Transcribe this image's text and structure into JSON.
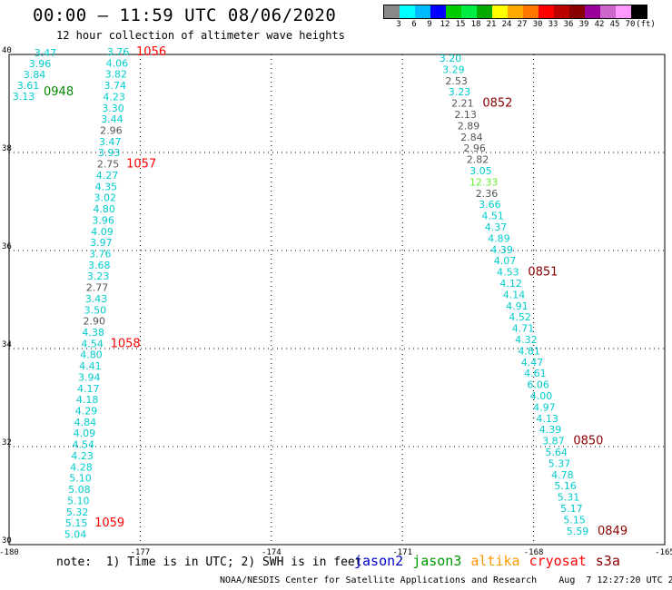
{
  "title": "00:00 – 11:59 UTC 08/06/2020",
  "subtitle": "12 hour collection of altimeter wave heights",
  "colorbar": {
    "colors": [
      "#888888",
      "#00ffff",
      "#00bbff",
      "#0000ff",
      "#00cc00",
      "#00ee44",
      "#00aa00",
      "#ffff00",
      "#ffaa00",
      "#ff7700",
      "#ff0000",
      "#bb0000",
      "#880000",
      "#990099",
      "#cc66cc",
      "#ff99ff",
      "#000000"
    ],
    "labels": [
      "3",
      "6",
      "9",
      "12",
      "15",
      "18",
      "21",
      "24",
      "27",
      "30",
      "33",
      "36",
      "39",
      "42",
      "45",
      "70",
      "(ft)"
    ]
  },
  "axes": {
    "x_ticks": [
      "-180",
      "-177",
      "-174",
      "-171",
      "-168",
      "-165"
    ],
    "y_ticks": [
      "40",
      "38",
      "36",
      "34",
      "32",
      "30"
    ]
  },
  "passes": [
    {
      "satellite": "cryosat s3a",
      "time": "1056",
      "time_color": "#ff0000",
      "lon_start": -179.1,
      "lon_end": -179.6,
      "values": [
        "3.47",
        "3.96",
        "3.84",
        "3.61",
        "3.13"
      ],
      "colors": [
        "#00cccc",
        "#00cccc",
        "#00cccc",
        "#00cccc",
        "#00cccc"
      ],
      "lat_start": 39.9,
      "lat_step": -0.22
    },
    {
      "satellite": "jason3",
      "time": "0948",
      "time_color": "#008800",
      "values": []
    }
  ],
  "left_track": {
    "values": [
      "3.76",
      "4.06",
      "3.82",
      "3.74",
      "4.23",
      "3.30",
      "3.44",
      "2.96",
      "3.47",
      "3.93",
      "2.75",
      "4.27",
      "4.35",
      "3.02",
      "4.80",
      "3.96",
      "4.09",
      "3.97",
      "3.76",
      "3.68",
      "3.23",
      "2.77",
      "3.43",
      "3.50",
      "2.90",
      "4.38",
      "4.54",
      "4.80",
      "4.41",
      "3.94",
      "4.17",
      "4.18",
      "4.29",
      "4.84",
      "4.09",
      "4.54",
      "4.23",
      "4.28",
      "5.10",
      "5.08",
      "5.10",
      "5.32",
      "5.15",
      "5.04"
    ],
    "colors": [
      "#00cccc",
      "#00cccc",
      "#00cccc",
      "#00cccc",
      "#00cccc",
      "#00cccc",
      "#00cccc",
      "#555555",
      "#00cccc",
      "#00cccc",
      "#555555",
      "#00cccc",
      "#00cccc",
      "#00cccc",
      "#00cccc",
      "#00cccc",
      "#00cccc",
      "#00cccc",
      "#00cccc",
      "#00cccc",
      "#00cccc",
      "#555555",
      "#00cccc",
      "#00cccc",
      "#555555",
      "#00cccc",
      "#00cccc",
      "#00cccc",
      "#00cccc",
      "#00cccc",
      "#00cccc",
      "#00cccc",
      "#00cccc",
      "#00cccc",
      "#00cccc",
      "#00cccc",
      "#00cccc",
      "#00cccc",
      "#00cccc",
      "#00cccc",
      "#00cccc",
      "#00cccc",
      "#00cccc",
      "#00cccc"
    ],
    "times": [
      {
        "label": "1056",
        "color": "#ff0000",
        "index": 0
      },
      {
        "label": "1057",
        "color": "#ff0000",
        "index": 10
      },
      {
        "label": "1058",
        "color": "#ff0000",
        "index": 26
      },
      {
        "label": "1059",
        "color": "#ff0000",
        "index": 42
      }
    ]
  },
  "topleft_track": {
    "values": [
      "3.47",
      "3.96",
      "3.84",
      "3.61",
      "3.13"
    ],
    "time": {
      "label": "0948",
      "color": "#008800"
    }
  },
  "right_track": {
    "values": [
      "3.20",
      "3.29",
      "2.53",
      "3.23",
      "2.21",
      "2.13",
      "2.89",
      "2.84",
      "2.96",
      "2.82",
      "3.05",
      "12.33",
      "2.36",
      "3.66",
      "4.51",
      "4.37",
      "4.89",
      "4.39",
      "4.07",
      "4.53",
      "4.12",
      "4.14",
      "4.91",
      "4.52",
      "4.71",
      "4.32",
      "4.81",
      "4.47",
      "4.61",
      "6.06",
      "4.00",
      "4.97",
      "4.13",
      "4.39",
      "3.87",
      "5.64",
      "5.37",
      "4.78",
      "5.16",
      "5.31",
      "5.17",
      "5.15",
      "5.59"
    ],
    "colors": [
      "#00cccc",
      "#00cccc",
      "#555555",
      "#00cccc",
      "#555555",
      "#555555",
      "#555555",
      "#555555",
      "#555555",
      "#555555",
      "#00cccc",
      "#66ee33",
      "#555555",
      "#00cccc",
      "#00cccc",
      "#00cccc",
      "#00cccc",
      "#00cccc",
      "#00cccc",
      "#00cccc",
      "#00cccc",
      "#00cccc",
      "#00cccc",
      "#00cccc",
      "#00cccc",
      "#00cccc",
      "#00cccc",
      "#00cccc",
      "#00cccc",
      "#00cccc",
      "#00cccc",
      "#00cccc",
      "#00cccc",
      "#00cccc",
      "#00cccc",
      "#00cccc",
      "#00cccc",
      "#00cccc",
      "#00cccc",
      "#00cccc",
      "#00cccc",
      "#00cccc",
      "#00cccc"
    ],
    "times": [
      {
        "label": "0852",
        "color": "#880000",
        "index": 4
      },
      {
        "label": "0851",
        "color": "#880000",
        "index": 19
      },
      {
        "label": "0850",
        "color": "#880000",
        "index": 34
      },
      {
        "label": "0849",
        "color": "#880000",
        "index": 42
      }
    ]
  },
  "note": "note:  1) Time is in UTC; 2) SWH is in feet",
  "legend": [
    {
      "label": "jason2",
      "color": "#0000cc"
    },
    {
      "label": "jason3",
      "color": "#009900"
    },
    {
      "label": "altika",
      "color": "#ff9900"
    },
    {
      "label": "cryosat",
      "color": "#ff0000"
    },
    {
      "label": "s3a",
      "color": "#880000"
    }
  ],
  "footer": "NOAA/NESDIS Center for Satellite Applications and Research    Aug  7 12:27:20 UTC 2020"
}
